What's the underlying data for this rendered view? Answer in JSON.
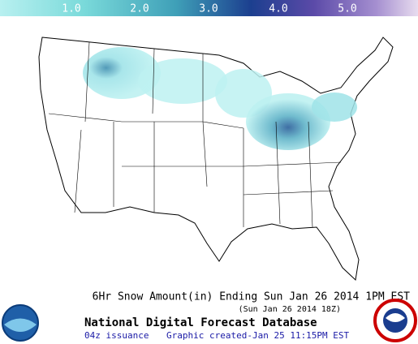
{
  "legend": {
    "labels": [
      "1.0",
      "2.0",
      "3.0",
      "4.0",
      "5.0"
    ]
  },
  "title": "6Hr Snow Amount(in) Ending Sun Jan 26 2014  1PM EST",
  "valid_time": "(Sun Jan 26 2014 18Z)",
  "database": "National Digital Forecast Database",
  "issuance": "04z issuance",
  "created": "Graphic created-Jan 25 11:15PM EST"
}
